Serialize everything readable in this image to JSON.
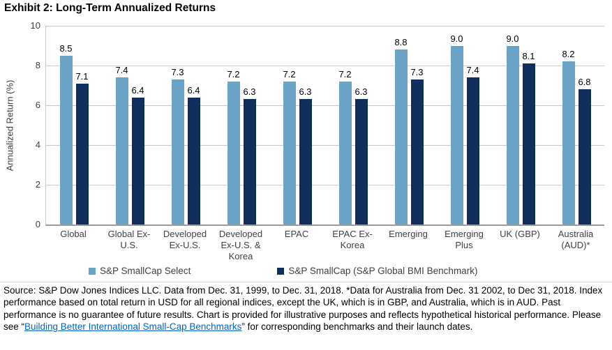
{
  "title": "Exhibit 2: Long-Term Annualized Returns",
  "chart_data": {
    "type": "bar",
    "categories": [
      "Global",
      "Global Ex-U.S.",
      "Developed Ex-U.S.",
      "Developed Ex-U.S. & Korea",
      "EPAC",
      "EPAC Ex-Korea",
      "Emerging",
      "Emerging Plus",
      "UK (GBP)",
      "Australia (AUD)*"
    ],
    "series": [
      {
        "name": "S&P SmallCap Select",
        "color": "#6BA3C7",
        "values": [
          8.5,
          7.4,
          7.3,
          7.2,
          7.2,
          7.2,
          8.8,
          9.0,
          9.0,
          8.2
        ]
      },
      {
        "name": "S&P SmallCap (S&P Global BMI Benchmark)",
        "color": "#0E2F5C",
        "values": [
          7.1,
          6.4,
          6.4,
          6.3,
          6.3,
          6.3,
          7.3,
          7.4,
          8.1,
          6.8
        ]
      }
    ],
    "title": "Exhibit 2: Long-Term Annualized Returns",
    "xlabel": "",
    "ylabel": "Annualized Return (%)",
    "ylim": [
      0,
      10
    ],
    "yticks": [
      0,
      2,
      4,
      6,
      8,
      10
    ],
    "grid": true,
    "legend_position": "bottom",
    "data_label_format": "one-decimal"
  },
  "footer": {
    "text_before_link": "Source: S&P Dow Jones Indices LLC. Data from Dec. 31, 1999, to Dec. 31, 2018. *Data for Australia from Dec. 31 2002, to Dec 31, 2018. Index performance based on total return in USD for all regional indices, except the UK, which is in GBP, and Australia, which is in AUD. Past performance is no guarantee of future results. Chart is provided for illustrative purposes and reflects hypothetical historical performance. Please see “",
    "link_text": "Building Better International Small-Cap Benchmarks",
    "text_after_link": "” for corresponding benchmarks and their launch dates.",
    "link_color": "#0563C1"
  }
}
